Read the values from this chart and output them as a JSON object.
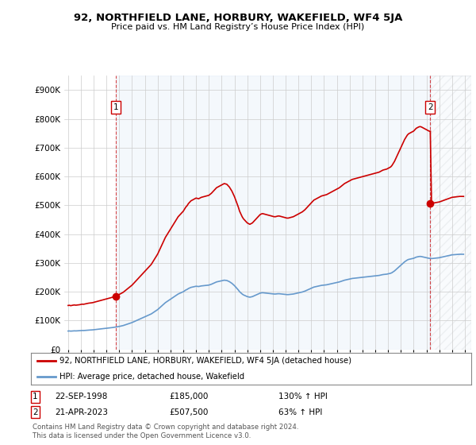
{
  "title": "92, NORTHFIELD LANE, HORBURY, WAKEFIELD, WF4 5JA",
  "subtitle": "Price paid vs. HM Land Registry’s House Price Index (HPI)",
  "hpi_label": "HPI: Average price, detached house, Wakefield",
  "property_label": "92, NORTHFIELD LANE, HORBURY, WAKEFIELD, WF4 5JA (detached house)",
  "sale1_date": "22-SEP-1998",
  "sale1_price": "£185,000",
  "sale1_hpi": "130% ↑ HPI",
  "sale2_date": "21-APR-2023",
  "sale2_price": "£507,500",
  "sale2_hpi": "63% ↑ HPI",
  "footnote": "Contains HM Land Registry data © Crown copyright and database right 2024.\nThis data is licensed under the Open Government Licence v3.0.",
  "property_color": "#cc0000",
  "hpi_color": "#6699cc",
  "sale1_x": 1998.72,
  "sale1_y": 185000,
  "sale2_x": 2023.3,
  "sale2_y": 507500,
  "ylim": [
    0,
    950000
  ],
  "yticks": [
    0,
    100000,
    200000,
    300000,
    400000,
    500000,
    600000,
    700000,
    800000,
    900000
  ],
  "hpi_index": {
    "1995.0": 63500,
    "1995.1": 63800,
    "1995.2": 63200,
    "1995.3": 63600,
    "1995.4": 64000,
    "1995.5": 64200,
    "1995.6": 63900,
    "1995.7": 64100,
    "1995.8": 64400,
    "1995.9": 64600,
    "1996.0": 65000,
    "1996.1": 65400,
    "1996.2": 65200,
    "1996.3": 65600,
    "1996.4": 66000,
    "1996.5": 66400,
    "1996.6": 66800,
    "1996.7": 67000,
    "1996.8": 67200,
    "1996.9": 67500,
    "1997.0": 68000,
    "1997.1": 68500,
    "1997.2": 69000,
    "1997.3": 69500,
    "1997.4": 70000,
    "1997.5": 70500,
    "1997.6": 71000,
    "1997.7": 71500,
    "1997.8": 72000,
    "1997.9": 72500,
    "1998.0": 73000,
    "1998.1": 73500,
    "1998.2": 74000,
    "1998.3": 74500,
    "1998.4": 75000,
    "1998.5": 75800,
    "1998.6": 76500,
    "1998.7": 77000,
    "1998.8": 77800,
    "1998.9": 78500,
    "1999.0": 79500,
    "1999.1": 80500,
    "1999.2": 81500,
    "1999.3": 82500,
    "1999.4": 84000,
    "1999.5": 85500,
    "1999.6": 87000,
    "1999.7": 88500,
    "1999.8": 90000,
    "1999.9": 91500,
    "2000.0": 93000,
    "2000.1": 95000,
    "2000.2": 97000,
    "2000.3": 99000,
    "2000.4": 101000,
    "2000.5": 103000,
    "2000.6": 105000,
    "2000.7": 107000,
    "2000.8": 109000,
    "2000.9": 111000,
    "2001.0": 113000,
    "2001.1": 115000,
    "2001.2": 117000,
    "2001.3": 119000,
    "2001.4": 121000,
    "2001.5": 123000,
    "2001.6": 126000,
    "2001.7": 129000,
    "2001.8": 132000,
    "2001.9": 135000,
    "2002.0": 138000,
    "2002.1": 142000,
    "2002.2": 146000,
    "2002.3": 150000,
    "2002.4": 154000,
    "2002.5": 158000,
    "2002.6": 162000,
    "2002.7": 165000,
    "2002.8": 168000,
    "2002.9": 171000,
    "2003.0": 174000,
    "2003.1": 177000,
    "2003.2": 180000,
    "2003.3": 183000,
    "2003.4": 186000,
    "2003.5": 189000,
    "2003.6": 192000,
    "2003.7": 194000,
    "2003.8": 196000,
    "2003.9": 198000,
    "2004.0": 200000,
    "2004.1": 203000,
    "2004.2": 206000,
    "2004.3": 208000,
    "2004.4": 211000,
    "2004.5": 213000,
    "2004.6": 215000,
    "2004.7": 216000,
    "2004.8": 217000,
    "2004.9": 218000,
    "2005.0": 219000,
    "2005.1": 218500,
    "2005.2": 218000,
    "2005.3": 219000,
    "2005.4": 220000,
    "2005.5": 220500,
    "2005.6": 221000,
    "2005.7": 221500,
    "2005.8": 222000,
    "2005.9": 222500,
    "2006.0": 223000,
    "2006.1": 224500,
    "2006.2": 226000,
    "2006.3": 228000,
    "2006.4": 230000,
    "2006.5": 232000,
    "2006.6": 234000,
    "2006.7": 235000,
    "2006.8": 236000,
    "2006.9": 237000,
    "2007.0": 238000,
    "2007.1": 239000,
    "2007.2": 240000,
    "2007.3": 239500,
    "2007.4": 239000,
    "2007.5": 237000,
    "2007.6": 235000,
    "2007.7": 232000,
    "2007.8": 229000,
    "2007.9": 225000,
    "2008.0": 221000,
    "2008.1": 216000,
    "2008.2": 211000,
    "2008.3": 206000,
    "2008.4": 200000,
    "2008.5": 196000,
    "2008.6": 192000,
    "2008.7": 189000,
    "2008.8": 187000,
    "2008.9": 185000,
    "2009.0": 183000,
    "2009.1": 182000,
    "2009.2": 181000,
    "2009.3": 182000,
    "2009.4": 183000,
    "2009.5": 185000,
    "2009.6": 187000,
    "2009.7": 189000,
    "2009.8": 191000,
    "2009.9": 193000,
    "2010.0": 195000,
    "2010.1": 196000,
    "2010.2": 196500,
    "2010.3": 196000,
    "2010.4": 195500,
    "2010.5": 195000,
    "2010.6": 194500,
    "2010.7": 194000,
    "2010.8": 193500,
    "2010.9": 193000,
    "2011.0": 192500,
    "2011.1": 192000,
    "2011.2": 192000,
    "2011.3": 192500,
    "2011.4": 193000,
    "2011.5": 193000,
    "2011.6": 192500,
    "2011.7": 192000,
    "2011.8": 191500,
    "2011.9": 191000,
    "2012.0": 190500,
    "2012.1": 190000,
    "2012.2": 190000,
    "2012.3": 190500,
    "2012.4": 191000,
    "2012.5": 191500,
    "2012.6": 192000,
    "2012.7": 193000,
    "2012.8": 194000,
    "2012.9": 195000,
    "2013.0": 196000,
    "2013.1": 197000,
    "2013.2": 198000,
    "2013.3": 199000,
    "2013.4": 200500,
    "2013.5": 202000,
    "2013.6": 204000,
    "2013.7": 206000,
    "2013.8": 208000,
    "2013.9": 210000,
    "2014.0": 212000,
    "2014.1": 214000,
    "2014.2": 216000,
    "2014.3": 217000,
    "2014.4": 218000,
    "2014.5": 219000,
    "2014.6": 220000,
    "2014.7": 221000,
    "2014.8": 222000,
    "2014.9": 222500,
    "2015.0": 223000,
    "2015.1": 223500,
    "2015.2": 224000,
    "2015.3": 225000,
    "2015.4": 226000,
    "2015.5": 227000,
    "2015.6": 228000,
    "2015.7": 229000,
    "2015.8": 230000,
    "2015.9": 231000,
    "2016.0": 232000,
    "2016.1": 233000,
    "2016.2": 234000,
    "2016.3": 235500,
    "2016.4": 237000,
    "2016.5": 238500,
    "2016.6": 240000,
    "2016.7": 241000,
    "2016.8": 242000,
    "2016.9": 243000,
    "2017.0": 244000,
    "2017.1": 245000,
    "2017.2": 246000,
    "2017.3": 246500,
    "2017.4": 247000,
    "2017.5": 247500,
    "2017.6": 248000,
    "2017.7": 248500,
    "2017.8": 249000,
    "2017.9": 249500,
    "2018.0": 250000,
    "2018.1": 250500,
    "2018.2": 251000,
    "2018.3": 251500,
    "2018.4": 252000,
    "2018.5": 252500,
    "2018.6": 253000,
    "2018.7": 253500,
    "2018.8": 254000,
    "2018.9": 254500,
    "2019.0": 255000,
    "2019.1": 255500,
    "2019.2": 256000,
    "2019.3": 256500,
    "2019.4": 257500,
    "2019.5": 258500,
    "2019.6": 259500,
    "2019.7": 260000,
    "2019.8": 260500,
    "2019.9": 261000,
    "2020.0": 262000,
    "2020.1": 263000,
    "2020.2": 264000,
    "2020.3": 266000,
    "2020.4": 269000,
    "2020.5": 272000,
    "2020.6": 276000,
    "2020.7": 280000,
    "2020.8": 284000,
    "2020.9": 288000,
    "2021.0": 292000,
    "2021.1": 296000,
    "2021.2": 300000,
    "2021.3": 304000,
    "2021.4": 307000,
    "2021.5": 310000,
    "2021.6": 312000,
    "2021.7": 313000,
    "2021.8": 314000,
    "2021.9": 315000,
    "2022.0": 316000,
    "2022.1": 318000,
    "2022.2": 320000,
    "2022.3": 321000,
    "2022.4": 322000,
    "2022.5": 322500,
    "2022.6": 322000,
    "2022.7": 321000,
    "2022.8": 320000,
    "2022.9": 319000,
    "2023.0": 318000,
    "2023.1": 317000,
    "2023.2": 316000,
    "2023.3": 315500,
    "2023.4": 315000,
    "2023.5": 315500,
    "2023.6": 316000,
    "2023.7": 316500,
    "2023.8": 317000,
    "2023.9": 317500,
    "2024.0": 318000,
    "2024.1": 319000,
    "2024.2": 320000,
    "2024.3": 321000,
    "2024.4": 322000,
    "2024.5": 323000,
    "2024.6": 324000,
    "2024.7": 325000,
    "2024.8": 326000,
    "2024.9": 327000,
    "2025.0": 328000,
    "2025.3": 329000,
    "2025.6": 330000,
    "2025.9": 330000
  },
  "xlim_left": 1994.7,
  "xlim_right": 2026.5
}
